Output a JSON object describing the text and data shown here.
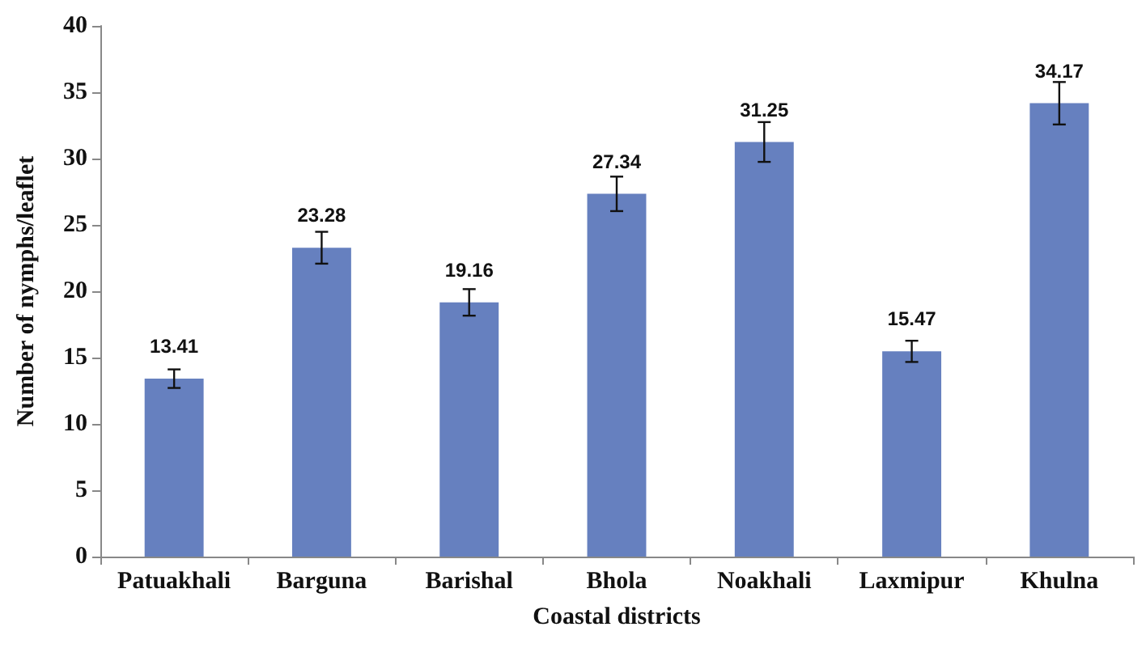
{
  "chart_data": {
    "type": "bar",
    "xlabel": "Coastal districts",
    "ylabel": "Number of nymphs/leaflet",
    "categories": [
      "Patuakhali",
      "Barguna",
      "Barishal",
      "Bhola",
      "Noakhali",
      "Laxmipur",
      "Khulna"
    ],
    "values": [
      13.41,
      23.28,
      19.16,
      27.34,
      31.25,
      15.47,
      34.17
    ],
    "errors": [
      0.7,
      1.2,
      1.0,
      1.3,
      1.5,
      0.8,
      1.6
    ],
    "color": "#6680bf",
    "data_labels": true,
    "ylim": [
      0,
      40
    ],
    "yticks": [
      0,
      5,
      10,
      15,
      20,
      25,
      30,
      35,
      40
    ],
    "grid": false
  }
}
